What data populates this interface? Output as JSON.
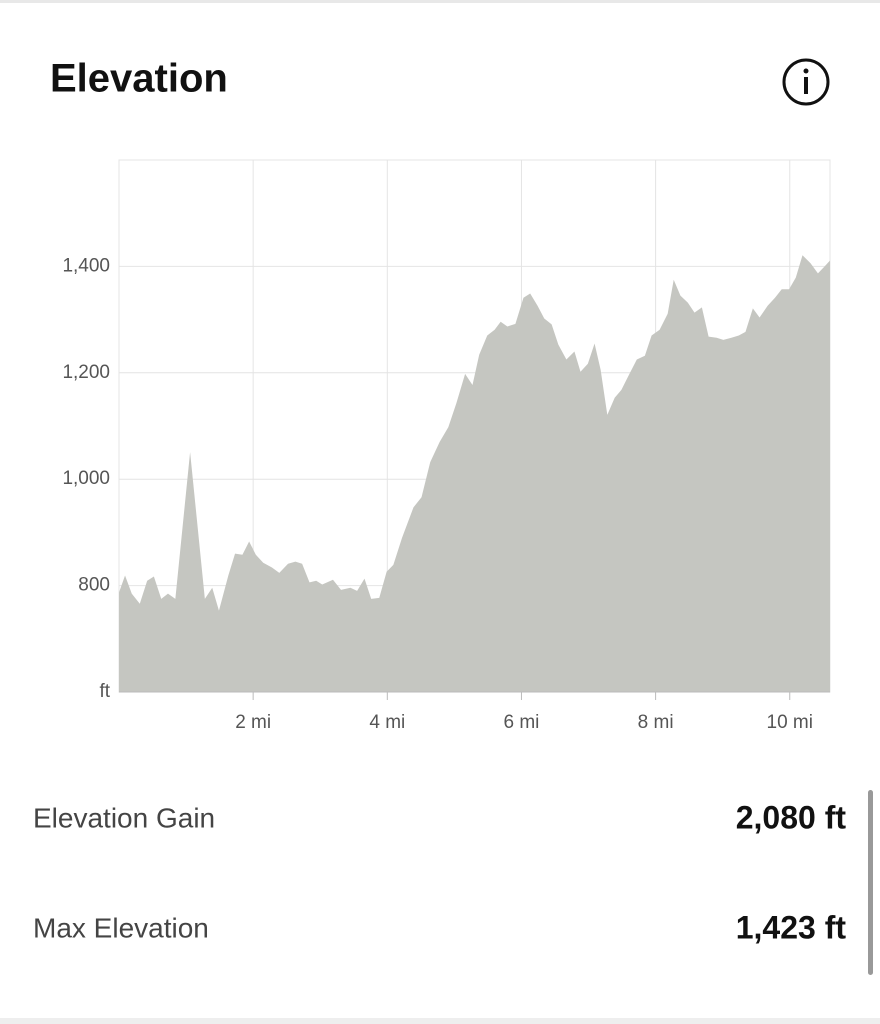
{
  "chart_data": {
    "type": "area",
    "title": "Elevation",
    "color": "#c5c6c1",
    "grid": true,
    "xlim": [
      0,
      10.6
    ],
    "ylim": [
      600,
      1600
    ],
    "xticks": [
      {
        "value": 2,
        "label": "2 mi"
      },
      {
        "value": 4,
        "label": "4 mi"
      },
      {
        "value": 6,
        "label": "6 mi"
      },
      {
        "value": 8,
        "label": "8 mi"
      },
      {
        "value": 10,
        "label": "10 mi"
      }
    ],
    "yticks": [
      {
        "value": 600,
        "label": "ft"
      },
      800,
      {
        "value": 1000,
        "label": "1,000"
      },
      {
        "value": 1200,
        "label": "1,200"
      },
      {
        "value": 1400,
        "label": "1,400"
      }
    ],
    "x": [
      0,
      0.09,
      0.19,
      0.31,
      0.42,
      0.52,
      0.63,
      0.73,
      0.84,
      1.06,
      1.28,
      1.39,
      1.49,
      1.63,
      1.73,
      1.84,
      1.94,
      2.04,
      2.15,
      2.28,
      2.39,
      2.52,
      2.63,
      2.73,
      2.84,
      2.94,
      3.03,
      3.19,
      3.31,
      3.45,
      3.55,
      3.66,
      3.76,
      3.88,
      3.99,
      4.09,
      4.22,
      4.39,
      4.51,
      4.64,
      4.78,
      4.91,
      5.03,
      5.16,
      5.27,
      5.37,
      5.49,
      5.6,
      5.69,
      5.79,
      5.91,
      6.03,
      6.13,
      6.24,
      6.34,
      6.45,
      6.55,
      6.67,
      6.79,
      6.88,
      6.99,
      7.09,
      7.18,
      7.28,
      7.39,
      7.49,
      7.61,
      7.72,
      7.84,
      7.94,
      8.06,
      8.18,
      8.27,
      8.37,
      8.48,
      8.58,
      8.69,
      8.79,
      8.91,
      9.01,
      9.13,
      9.24,
      9.34,
      9.45,
      9.55,
      9.67,
      9.78,
      9.88,
      9.99,
      10.09,
      10.19,
      10.31,
      10.42,
      10.52,
      10.6
    ],
    "values": [
      787,
      819,
      785,
      766,
      809,
      817,
      775,
      785,
      775,
      1051,
      775,
      796,
      753,
      819,
      860,
      858,
      883,
      858,
      843,
      834,
      824,
      841,
      845,
      841,
      806,
      809,
      802,
      811,
      792,
      796,
      790,
      813,
      775,
      777,
      826,
      839,
      890,
      947,
      966,
      1032,
      1070,
      1098,
      1143,
      1198,
      1177,
      1234,
      1270,
      1281,
      1296,
      1287,
      1292,
      1341,
      1349,
      1326,
      1302,
      1291,
      1253,
      1225,
      1240,
      1202,
      1217,
      1255,
      1206,
      1121,
      1153,
      1168,
      1198,
      1225,
      1232,
      1270,
      1281,
      1311,
      1375,
      1345,
      1332,
      1313,
      1323,
      1268,
      1266,
      1262,
      1266,
      1270,
      1277,
      1321,
      1304,
      1326,
      1341,
      1357,
      1357,
      1379,
      1421,
      1406,
      1387,
      1400,
      1411
    ]
  },
  "stats": [
    {
      "label": "Elevation Gain",
      "value": "2,080 ft"
    },
    {
      "label": "Max Elevation",
      "value": "1,423 ft"
    }
  ]
}
